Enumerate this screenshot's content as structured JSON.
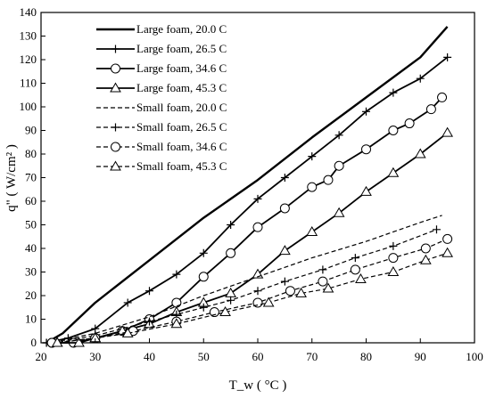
{
  "chart_data": {
    "type": "line",
    "xlabel": "T_w ( °C )",
    "ylabel": "q\" ( W/cm² )",
    "xlim": [
      20,
      100
    ],
    "ylim": [
      0,
      140
    ],
    "x_ticks": [
      "20",
      "30",
      "40",
      "50",
      "60",
      "70",
      "80",
      "90",
      "100"
    ],
    "y_ticks": [
      "0",
      "10",
      "20",
      "30",
      "40",
      "50",
      "60",
      "70",
      "80",
      "90",
      "100",
      "110",
      "120",
      "130",
      "140"
    ],
    "grid": false,
    "legend_position": "top-left",
    "series": [
      {
        "name": "Large foam, 20.0  C",
        "line": "solid",
        "marker": "none",
        "width": 2.4,
        "x": [
          21,
          24,
          30,
          40,
          50,
          60,
          70,
          80,
          90,
          95
        ],
        "y": [
          0,
          4,
          17,
          35,
          53,
          69,
          87,
          104,
          121,
          134
        ]
      },
      {
        "name": "Large foam, 26.5  C",
        "line": "solid",
        "marker": "plus",
        "width": 1.8,
        "x": [
          21,
          25,
          30,
          36,
          40,
          45,
          50,
          55,
          60,
          65,
          70,
          75,
          80,
          85,
          90,
          95
        ],
        "y": [
          0,
          2,
          6,
          17,
          22,
          29,
          38,
          50,
          61,
          70,
          79,
          88,
          98,
          106,
          112,
          121
        ]
      },
      {
        "name": "Large foam, 34.6  C",
        "line": "solid",
        "marker": "circle",
        "width": 1.8,
        "x": [
          22,
          26,
          30,
          35,
          40,
          45,
          50,
          55,
          60,
          65,
          70,
          73,
          75,
          80,
          85,
          88,
          92,
          94
        ],
        "y": [
          0,
          0,
          2,
          5,
          10,
          17,
          28,
          38,
          49,
          57,
          66,
          69,
          75,
          82,
          90,
          93,
          99,
          104
        ]
      },
      {
        "name": "Large foam, 45.3  C",
        "line": "solid",
        "marker": "triangle",
        "width": 1.8,
        "x": [
          23,
          27,
          30,
          35,
          40,
          45,
          50,
          55,
          60,
          65,
          70,
          75,
          80,
          85,
          90,
          95
        ],
        "y": [
          0,
          0,
          2,
          5,
          8,
          13,
          17,
          21,
          29,
          39,
          47,
          55,
          64,
          72,
          80,
          89
        ]
      },
      {
        "name": "Small foam, 20.0  C",
        "line": "dashed",
        "marker": "none",
        "width": 1.2,
        "x": [
          21,
          30,
          40,
          50,
          60,
          70,
          80,
          90,
          94
        ],
        "y": [
          0,
          4,
          11,
          20,
          28,
          36,
          43,
          51,
          54
        ]
      },
      {
        "name": "Small foam, 26.5  C",
        "line": "dashed",
        "marker": "plus",
        "width": 1.2,
        "x": [
          21,
          30,
          40,
          45,
          50,
          55,
          60,
          65,
          72,
          78,
          85,
          93
        ],
        "y": [
          0,
          3,
          9,
          12,
          15,
          18,
          22,
          26,
          31,
          36,
          41,
          48
        ]
      },
      {
        "name": "Small foam, 34.6  C",
        "line": "dashed",
        "marker": "circle",
        "width": 1.2,
        "x": [
          22,
          30,
          37,
          45,
          52,
          60,
          66,
          72,
          78,
          85,
          91,
          95
        ],
        "y": [
          0,
          2,
          5,
          9,
          13,
          17,
          22,
          26,
          31,
          36,
          40,
          44
        ]
      },
      {
        "name": "Small foam, 45.3  C",
        "line": "dashed",
        "marker": "triangle",
        "width": 1.2,
        "x": [
          23,
          30,
          36,
          45,
          54,
          62,
          68,
          73,
          79,
          85,
          91,
          95
        ],
        "y": [
          0,
          2,
          4,
          8,
          13,
          17,
          21,
          23,
          27,
          30,
          35,
          38
        ]
      }
    ]
  }
}
